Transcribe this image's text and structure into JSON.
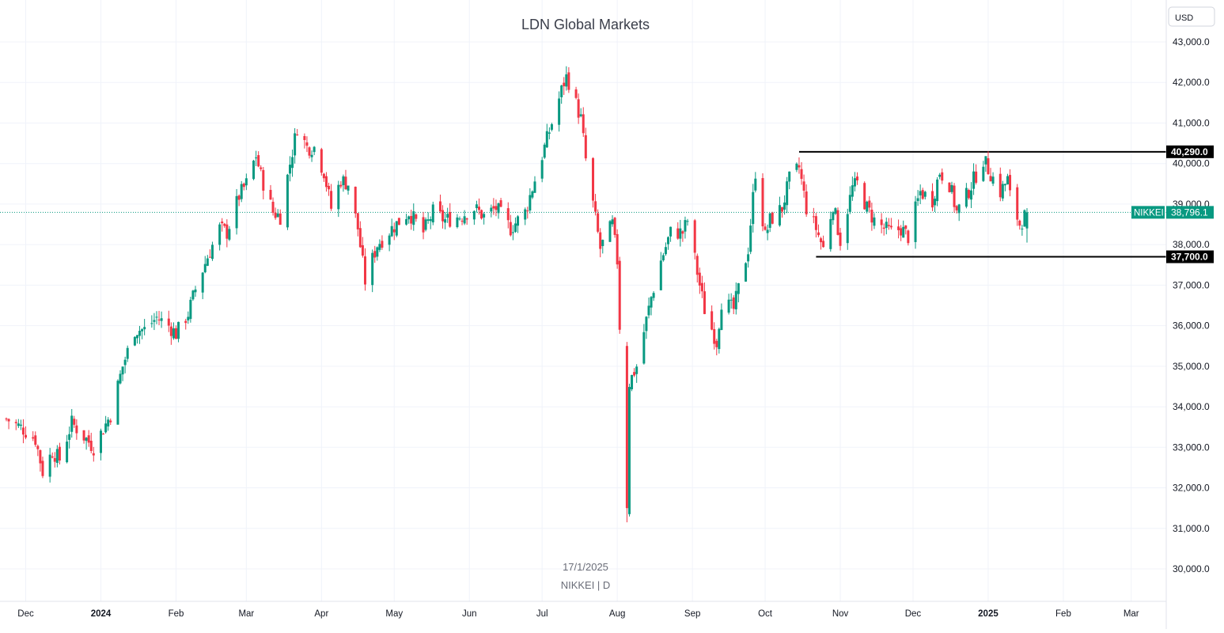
{
  "window": {
    "title": "LDN Global Markets",
    "currency": "USD"
  },
  "watermark": {
    "date": "17/1/2025",
    "symbol_line": "NIKKEI | D"
  },
  "colors": {
    "up": "#089981",
    "down": "#f23645",
    "last_price_line": "#089981",
    "level_line": "#000000",
    "grid": "#f0f3fa"
  },
  "chart_data": {
    "type": "candlestick",
    "title": "LDN Global Markets",
    "symbol": "NIKKEI",
    "interval": "D",
    "currency": "USD",
    "ylim": [
      29500,
      43500
    ],
    "y_ticks": [
      "43,000.0",
      "42,000.0",
      "41,000.0",
      "40,000.0",
      "39,000.0",
      "38,000.0",
      "37,000.0",
      "36,000.0",
      "35,000.0",
      "34,000.0",
      "33,000.0",
      "32,000.0",
      "31,000.0",
      "30,000.0"
    ],
    "y_tick_values": [
      43000,
      42000,
      41000,
      40000,
      39000,
      38000,
      37000,
      36000,
      35000,
      34000,
      33000,
      32000,
      31000,
      30000
    ],
    "x_range": [
      "2023-11-23",
      "2025-03-05"
    ],
    "x_ticks": [
      {
        "date": "2023-12-01",
        "label": "Dec",
        "bold": false
      },
      {
        "date": "2024-01-01",
        "label": "2024",
        "bold": true
      },
      {
        "date": "2024-02-01",
        "label": "Feb",
        "bold": false
      },
      {
        "date": "2024-03-01",
        "label": "Mar",
        "bold": false
      },
      {
        "date": "2024-04-01",
        "label": "Apr",
        "bold": false
      },
      {
        "date": "2024-05-01",
        "label": "May",
        "bold": false
      },
      {
        "date": "2024-06-01",
        "label": "Jun",
        "bold": false
      },
      {
        "date": "2024-07-01",
        "label": "Jul",
        "bold": false
      },
      {
        "date": "2024-08-01",
        "label": "Aug",
        "bold": false
      },
      {
        "date": "2024-09-01",
        "label": "Sep",
        "bold": false
      },
      {
        "date": "2024-10-01",
        "label": "Oct",
        "bold": false
      },
      {
        "date": "2024-11-01",
        "label": "Nov",
        "bold": false
      },
      {
        "date": "2024-12-01",
        "label": "Dec",
        "bold": false
      },
      {
        "date": "2025-01-01",
        "label": "2025",
        "bold": true
      },
      {
        "date": "2025-02-01",
        "label": "Feb",
        "bold": false
      },
      {
        "date": "2025-03-01",
        "label": "Mar",
        "bold": false
      }
    ],
    "last_price": {
      "label": "NIKKEI",
      "value": 38796.1,
      "text": "38,796.1"
    },
    "levels": [
      {
        "value": 40290,
        "text": "40,290.0",
        "start_date": "2024-10-15"
      },
      {
        "value": 37700,
        "text": "37,700.0",
        "start_date": "2024-10-22"
      }
    ],
    "close_path": [
      [
        "2023-11-23",
        33700
      ],
      [
        "2023-11-30",
        33450
      ],
      [
        "2023-12-05",
        33200
      ],
      [
        "2023-12-08",
        32400
      ],
      [
        "2023-12-12",
        32900
      ],
      [
        "2023-12-15",
        32700
      ],
      [
        "2023-12-20",
        33600
      ],
      [
        "2023-12-26",
        33200
      ],
      [
        "2023-12-29",
        33000
      ],
      [
        "2024-01-05",
        33800
      ],
      [
        "2024-01-10",
        35000
      ],
      [
        "2024-01-15",
        35900
      ],
      [
        "2024-01-19",
        35900
      ],
      [
        "2024-01-24",
        36200
      ],
      [
        "2024-01-29",
        36000
      ],
      [
        "2024-02-01",
        35800
      ],
      [
        "2024-02-06",
        36300
      ],
      [
        "2024-02-09",
        36900
      ],
      [
        "2024-02-14",
        37700
      ],
      [
        "2024-02-19",
        38400
      ],
      [
        "2024-02-22",
        38300
      ],
      [
        "2024-02-27",
        39200
      ],
      [
        "2024-03-01",
        39500
      ],
      [
        "2024-03-05",
        40200
      ],
      [
        "2024-03-07",
        39700
      ],
      [
        "2024-03-12",
        38800
      ],
      [
        "2024-03-15",
        38700
      ],
      [
        "2024-03-19",
        40000
      ],
      [
        "2024-03-22",
        40900
      ],
      [
        "2024-03-26",
        40400
      ],
      [
        "2024-03-29",
        40400
      ],
      [
        "2024-04-02",
        39800
      ],
      [
        "2024-04-05",
        38900
      ],
      [
        "2024-04-09",
        39600
      ],
      [
        "2024-04-12",
        39500
      ],
      [
        "2024-04-16",
        38400
      ],
      [
        "2024-04-19",
        37100
      ],
      [
        "2024-04-24",
        38000
      ],
      [
        "2024-04-30",
        38400
      ],
      [
        "2024-05-07",
        38800
      ],
      [
        "2024-05-13",
        38300
      ],
      [
        "2024-05-17",
        38800
      ],
      [
        "2024-05-22",
        38600
      ],
      [
        "2024-05-28",
        38700
      ],
      [
        "2024-06-03",
        38900
      ],
      [
        "2024-06-07",
        38700
      ],
      [
        "2024-06-12",
        38900
      ],
      [
        "2024-06-18",
        38400
      ],
      [
        "2024-06-24",
        38800
      ],
      [
        "2024-06-28",
        39600
      ],
      [
        "2024-07-04",
        40800
      ],
      [
        "2024-07-11",
        42200
      ],
      [
        "2024-07-17",
        41100
      ],
      [
        "2024-07-19",
        40100
      ],
      [
        "2024-07-25",
        37900
      ],
      [
        "2024-07-30",
        38500
      ],
      [
        "2024-08-01",
        37600
      ],
      [
        "2024-08-02",
        35900
      ],
      [
        "2024-08-05",
        31500
      ],
      [
        "2024-08-06",
        34600
      ],
      [
        "2024-08-09",
        35000
      ],
      [
        "2024-08-15",
        36700
      ],
      [
        "2024-08-19",
        37600
      ],
      [
        "2024-08-23",
        38300
      ],
      [
        "2024-08-28",
        38300
      ],
      [
        "2024-08-30",
        38600
      ],
      [
        "2024-09-04",
        37000
      ],
      [
        "2024-09-06",
        36400
      ],
      [
        "2024-09-11",
        35600
      ],
      [
        "2024-09-13",
        36600
      ],
      [
        "2024-09-18",
        36400
      ],
      [
        "2024-09-24",
        37900
      ],
      [
        "2024-09-27",
        39800
      ],
      [
        "2024-10-01",
        38200
      ],
      [
        "2024-10-03",
        38600
      ],
      [
        "2024-10-08",
        38900
      ],
      [
        "2024-10-11",
        39600
      ],
      [
        "2024-10-15",
        39900
      ],
      [
        "2024-10-18",
        38900
      ],
      [
        "2024-10-22",
        38400
      ],
      [
        "2024-10-25",
        37900
      ],
      [
        "2024-10-29",
        39000
      ],
      [
        "2024-11-01",
        38100
      ],
      [
        "2024-11-06",
        39400
      ],
      [
        "2024-11-08",
        39500
      ],
      [
        "2024-11-12",
        38900
      ],
      [
        "2024-11-15",
        38600
      ],
      [
        "2024-11-19",
        38400
      ],
      [
        "2024-11-22",
        38300
      ],
      [
        "2024-11-26",
        38400
      ],
      [
        "2024-11-29",
        38200
      ],
      [
        "2024-12-04",
        39300
      ],
      [
        "2024-12-09",
        39100
      ],
      [
        "2024-12-12",
        39800
      ],
      [
        "2024-12-16",
        39500
      ],
      [
        "2024-12-19",
        38800
      ],
      [
        "2024-12-23",
        39200
      ],
      [
        "2024-12-26",
        39600
      ],
      [
        "2024-12-30",
        40100
      ],
      [
        "2025-01-06",
        39300
      ],
      [
        "2025-01-09",
        39600
      ],
      [
        "2025-01-10",
        39200
      ],
      [
        "2025-01-14",
        38500
      ],
      [
        "2025-01-17",
        38796
      ]
    ]
  }
}
